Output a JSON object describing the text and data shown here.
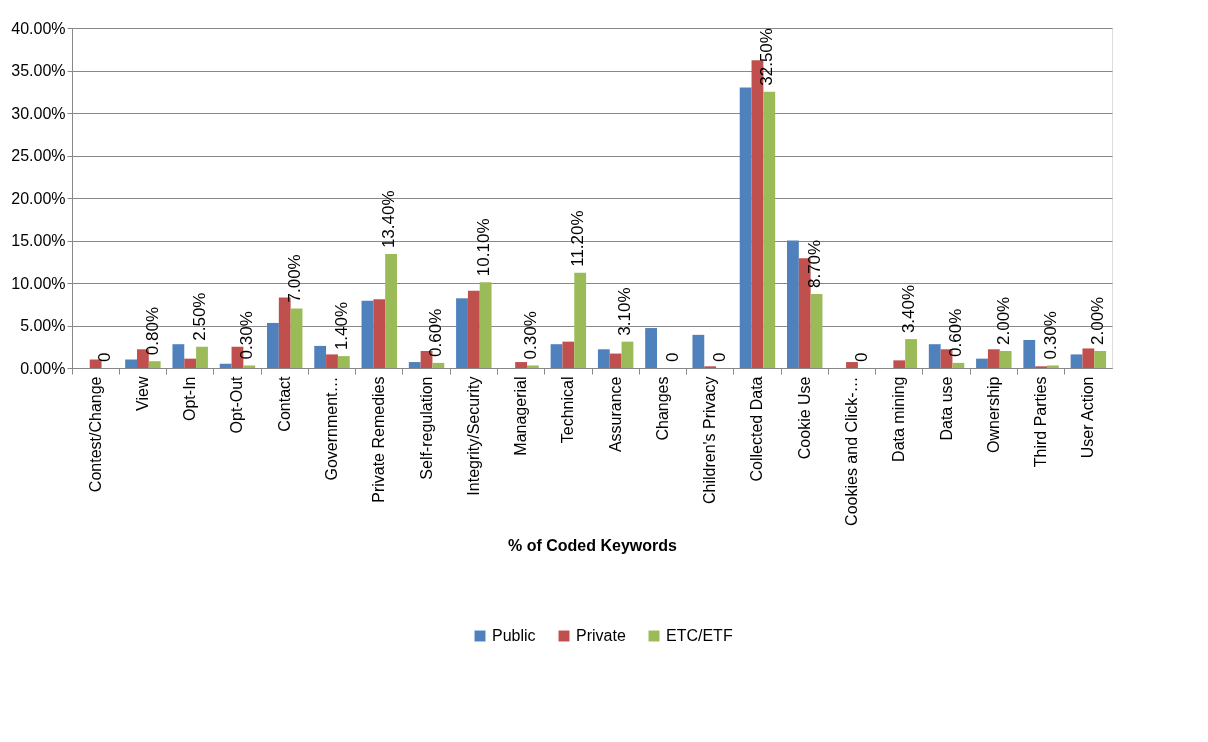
{
  "chart_data": {
    "type": "bar",
    "xlabel": "% of Coded Keywords",
    "categories": [
      "Contest/Change",
      "View",
      "Opt-In",
      "Opt-Out",
      "Contact",
      "Government…",
      "Private Remedies",
      "Self-regulation",
      "Integrity/Security",
      "Managerial",
      "Technical",
      "Assurance",
      "Changes",
      "Children's Privacy",
      "Collected Data",
      "Cookie Use",
      "Cookies and Click-…",
      "Data mining",
      "Data use",
      "Ownership",
      "Third Parties",
      "User Action"
    ],
    "series": [
      {
        "name": "Public",
        "color": "#4f81bd",
        "values": [
          0,
          1.0,
          2.8,
          0.5,
          5.3,
          2.6,
          7.9,
          0.7,
          8.2,
          0,
          2.8,
          2.2,
          4.7,
          3.9,
          33.0,
          15.0,
          0,
          0,
          2.8,
          1.1,
          3.3,
          1.6
        ]
      },
      {
        "name": "Private",
        "color": "#c0504d",
        "values": [
          1.0,
          2.2,
          1.1,
          2.5,
          8.3,
          1.6,
          8.1,
          2.0,
          9.1,
          0.7,
          3.1,
          1.7,
          0,
          0.2,
          36.2,
          12.9,
          0.7,
          0.9,
          2.2,
          2.2,
          0.2,
          2.3
        ]
      },
      {
        "name": "ETC/ETF",
        "color": "#9bbb59",
        "values": [
          0,
          0.8,
          2.5,
          0.3,
          7.0,
          1.4,
          13.4,
          0.6,
          10.1,
          0.3,
          11.2,
          3.1,
          0,
          0,
          32.5,
          8.7,
          0,
          3.4,
          0.6,
          2.0,
          0.3,
          2.0
        ],
        "value_labels": [
          "0",
          "0.80%",
          "2.50%",
          "0.30%",
          "7.00%",
          "1.40%",
          "13.40%",
          "0.60%",
          "10.10%",
          "0.30%",
          "11.20%",
          "3.10%",
          "0",
          "0",
          "32.50%",
          "8.70%",
          "0",
          "3.40%",
          "0.60%",
          "2.00%",
          "0.30%",
          "2.00%"
        ]
      }
    ],
    "ylim": [
      0,
      40
    ],
    "yticks": [
      {
        "value": 0,
        "label": "0.00%"
      },
      {
        "value": 5,
        "label": "5.00%"
      },
      {
        "value": 10,
        "label": "10.00%"
      },
      {
        "value": 15,
        "label": "15.00%"
      },
      {
        "value": 20,
        "label": "20.00%"
      },
      {
        "value": 25,
        "label": "25.00%"
      },
      {
        "value": 30,
        "label": "30.00%"
      },
      {
        "value": 35,
        "label": "35.00%"
      },
      {
        "value": 40,
        "label": "40.00%"
      }
    ],
    "grid": "y",
    "legend": "bottom"
  }
}
